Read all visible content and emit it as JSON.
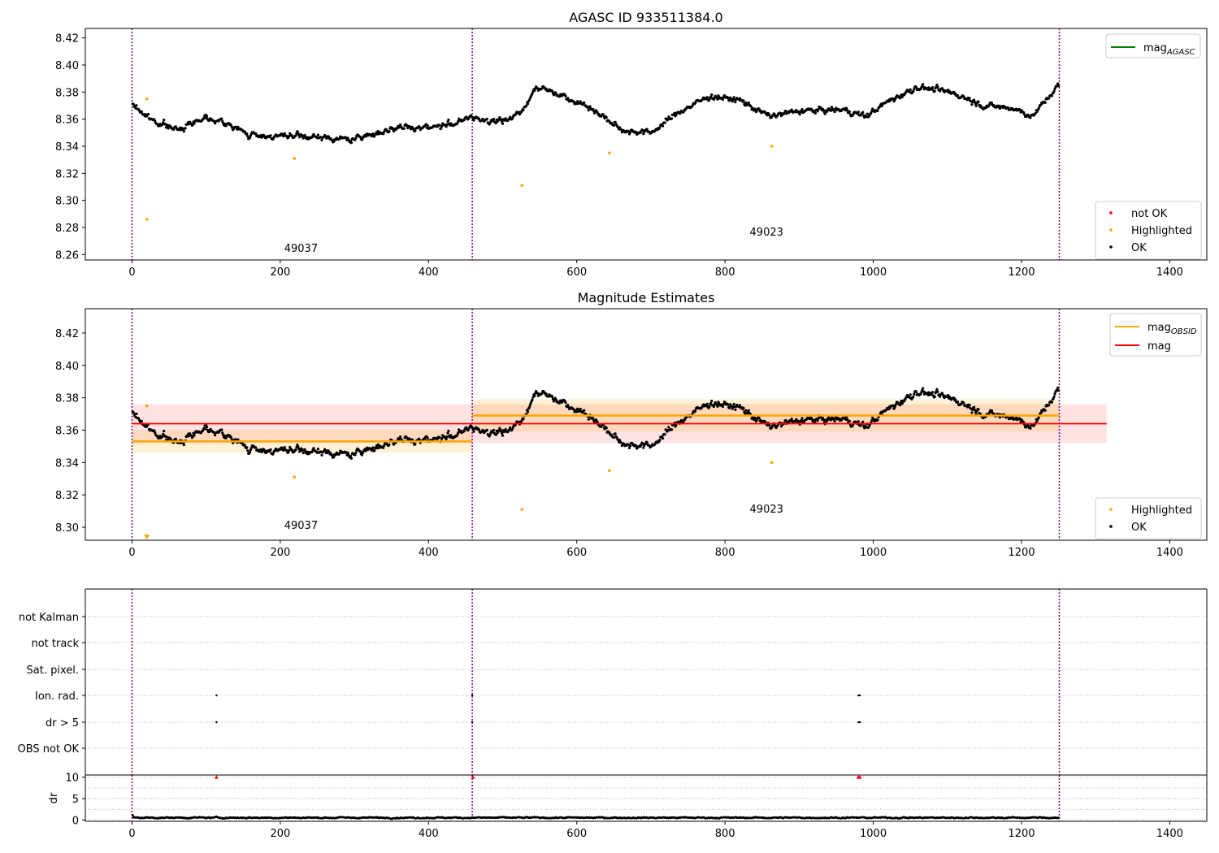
{
  "chart_data": [
    {
      "type": "scatter",
      "title": "AGASC ID 933511384.0",
      "xlim": [
        -63,
        1450
      ],
      "ylim": [
        8.256,
        8.427
      ],
      "xticks": [
        "0",
        "200",
        "400",
        "600",
        "800",
        "1000",
        "1200",
        "1400"
      ],
      "yticks": [
        "8.26",
        "8.28",
        "8.30",
        "8.32",
        "8.34",
        "8.36",
        "8.38",
        "8.40",
        "8.42"
      ],
      "obsid_boundaries": [
        0,
        459,
        1251
      ],
      "obsids": [
        {
          "label": "49037",
          "x": 228,
          "y": 8.262
        },
        {
          "label": "49023",
          "x": 856,
          "y": 8.274
        }
      ],
      "series": [
        {
          "name": "not OK",
          "color": "#ff0000"
        },
        {
          "name": "Highlighted",
          "color": "#ffa500",
          "points": [
            [
              20,
              8.375
            ],
            [
              20,
              8.286
            ],
            [
              219,
              8.331
            ],
            [
              526,
              8.311
            ],
            [
              644,
              8.335
            ],
            [
              863,
              8.34
            ]
          ]
        },
        {
          "name": "OK",
          "color": "#000000"
        }
      ],
      "line_legend": [
        {
          "name": "mag",
          "sub": "AGASC",
          "color": "#008000"
        }
      ],
      "grid": false,
      "legend_position": "top-right and bottom-right"
    },
    {
      "type": "scatter",
      "title": "Magnitude Estimates",
      "xlim": [
        -63,
        1450
      ],
      "ylim": [
        8.292,
        8.435
      ],
      "xticks": [
        "0",
        "200",
        "400",
        "600",
        "800",
        "1000",
        "1200",
        "1400"
      ],
      "yticks": [
        "8.30",
        "8.32",
        "8.34",
        "8.36",
        "8.38",
        "8.40",
        "8.42"
      ],
      "obsid_boundaries": [
        0,
        459,
        1251
      ],
      "obsids": [
        {
          "label": "49037",
          "x": 228,
          "y": 8.299
        },
        {
          "label": "49023",
          "x": 856,
          "y": 8.309
        }
      ],
      "mag": {
        "value": 8.364,
        "lo": 8.352,
        "hi": 8.376,
        "x": [
          0,
          1315
        ],
        "color": "#ff0000"
      },
      "mag_obsid": [
        {
          "x": [
            0,
            459
          ],
          "value": 8.353,
          "lo": 8.346,
          "hi": 8.36
        },
        {
          "x": [
            459,
            1251
          ],
          "value": 8.369,
          "lo": 8.359,
          "hi": 8.379
        }
      ],
      "series": [
        {
          "name": "Highlighted",
          "color": "#ffa500",
          "points": [
            [
              20,
              8.375
            ],
            [
              219,
              8.331
            ],
            [
              526,
              8.311
            ],
            [
              644,
              8.335
            ],
            [
              863,
              8.34
            ]
          ]
        },
        {
          "name": "OK",
          "color": "#000000"
        }
      ],
      "out_of_range_marker": {
        "x": 20,
        "color": "#ffa500"
      },
      "line_legend": [
        {
          "name": "mag",
          "sub": "OBSID",
          "color": "#ffa500"
        },
        {
          "name": "mag",
          "sub": "",
          "color": "#ff0000"
        }
      ],
      "grid": false,
      "legend_position": "top-right and bottom-right"
    },
    {
      "type": "scatter",
      "title": "",
      "xlim": [
        -63,
        1450
      ],
      "categories": [
        "not Kalman",
        "not track",
        "Sat. pixel.",
        "Ion. rad.",
        "dr > 5",
        "OBS not OK"
      ],
      "flag_points": [
        {
          "flag": "Ion. rad.",
          "x": [
            114,
            459,
            980,
            982
          ]
        },
        {
          "flag": "dr > 5",
          "x": [
            114,
            459,
            980,
            982
          ]
        }
      ],
      "grid": "horizontal dotted"
    },
    {
      "type": "scatter",
      "title": "",
      "ylabel": "dr",
      "xlim": [
        -63,
        1450
      ],
      "ylim": [
        -0.3,
        10.5
      ],
      "xticks": [
        "0",
        "200",
        "400",
        "600",
        "800",
        "1000",
        "1200",
        "1400"
      ],
      "yticks": [
        "0",
        "5",
        "10"
      ],
      "obsid_boundaries": [
        0,
        459,
        1251
      ],
      "clipped_points": [
        114,
        460,
        980,
        982
      ],
      "series": [
        {
          "name": "dr",
          "color": "#000000"
        }
      ],
      "grid": "horizontal dotted"
    }
  ]
}
